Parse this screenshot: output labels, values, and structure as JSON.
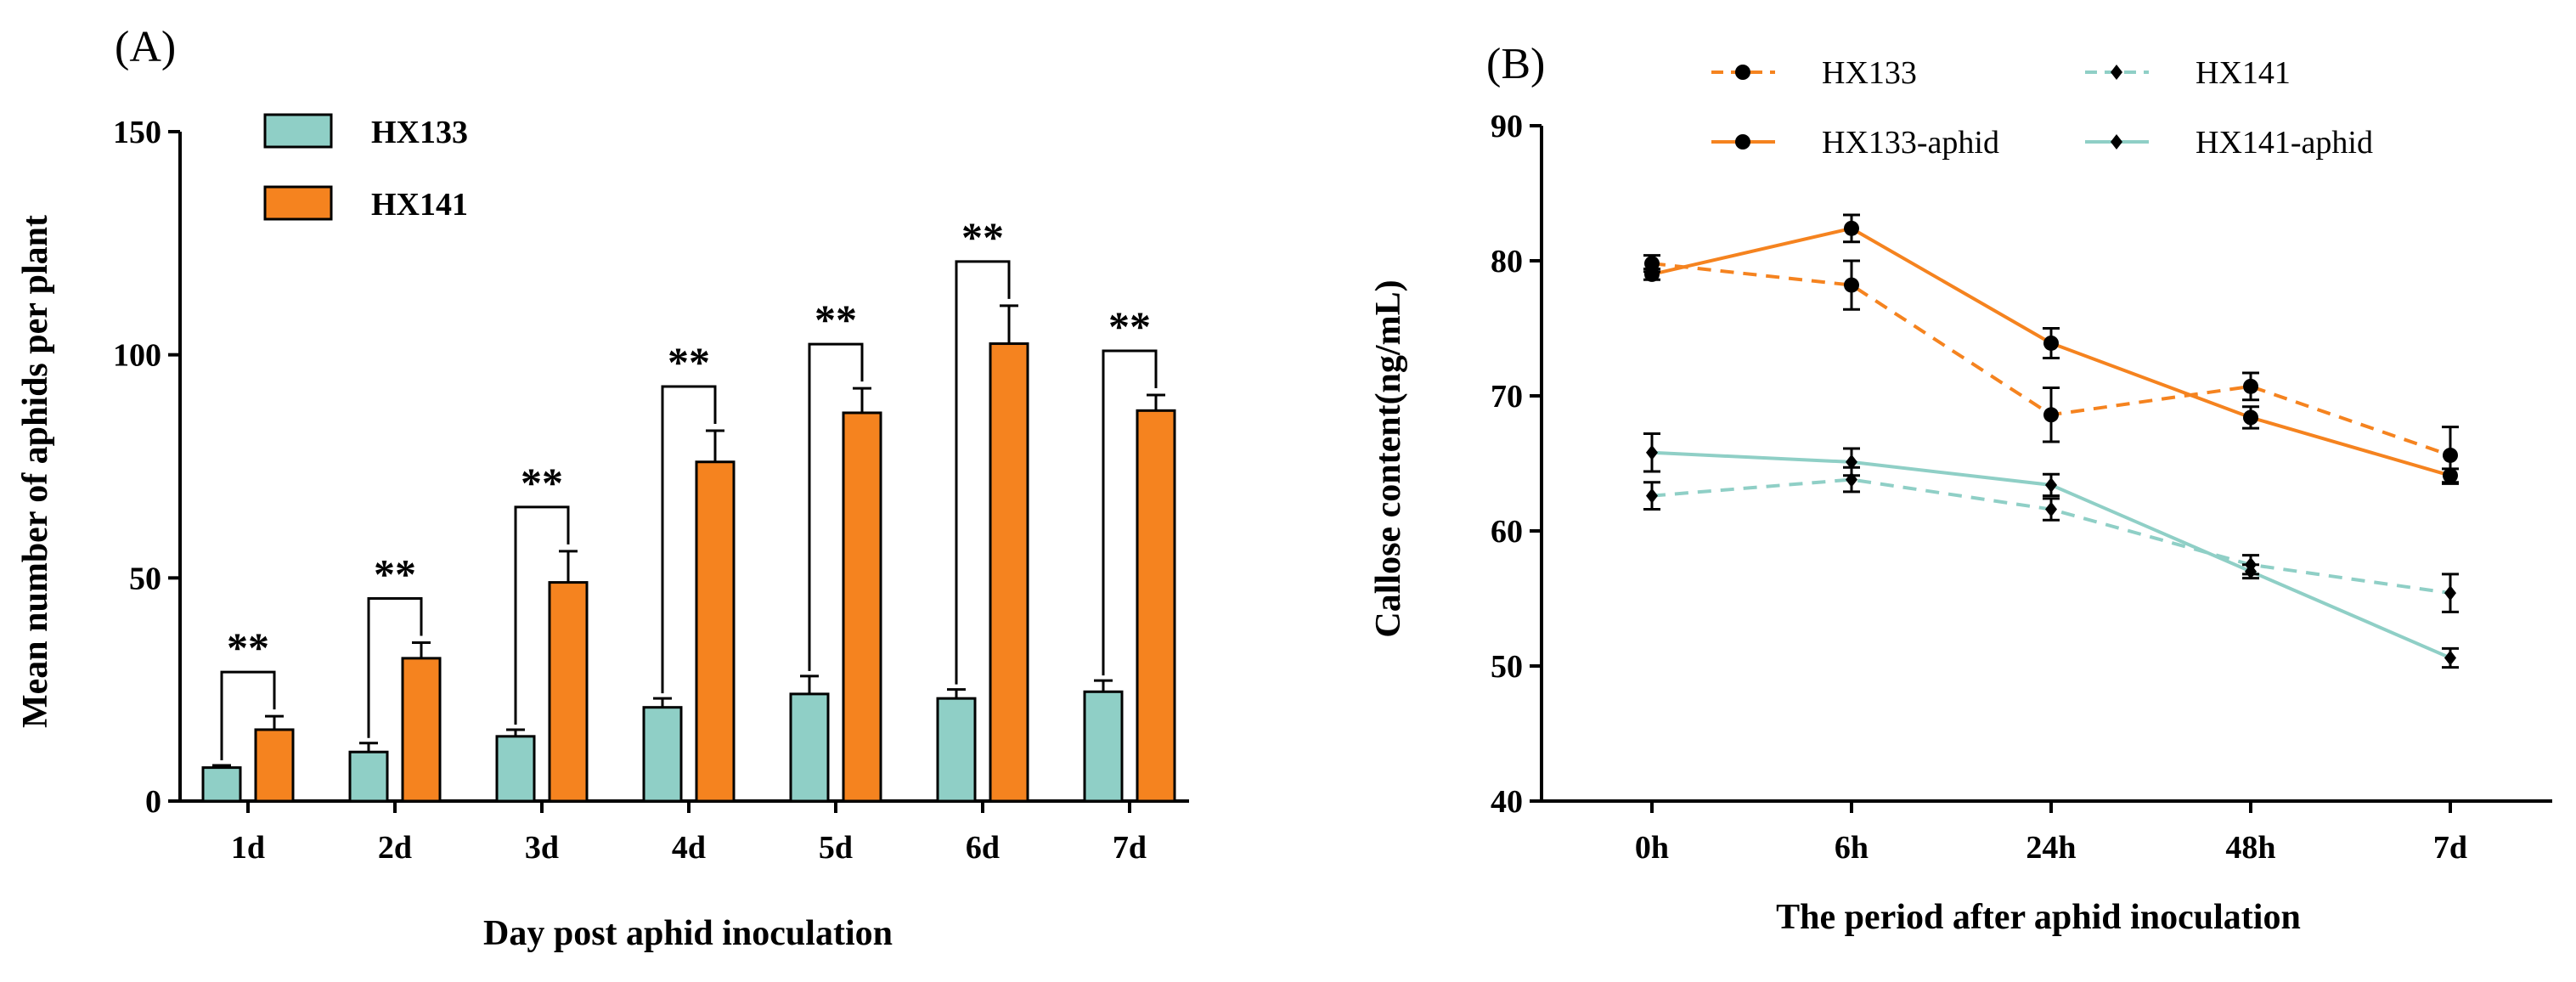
{
  "panel_a": {
    "label": "(A)"
  },
  "panel_b": {
    "label": "(B)"
  },
  "colors": {
    "hx133_bar": "#8fcfc6",
    "hx141_bar": "#f5831f",
    "orange": "#f5831f",
    "teal": "#8fcfc6",
    "marker": "#000000"
  },
  "chart_data": [
    {
      "type": "bar",
      "title": "",
      "xlabel": "Day post aphid inoculation",
      "ylabel": "Mean number of aphids per plant",
      "ylim": [
        0,
        150
      ],
      "yticks": [
        0,
        50,
        100,
        150
      ],
      "categories": [
        "1d",
        "2d",
        "3d",
        "4d",
        "5d",
        "6d",
        "7d"
      ],
      "legend_position": "top-left",
      "series": [
        {
          "name": "HX133",
          "values": [
            7.5,
            11,
            14.5,
            21,
            24,
            23,
            24.5
          ],
          "errors": [
            0.5,
            2,
            1.5,
            2,
            4,
            2,
            2.5
          ]
        },
        {
          "name": "HX141",
          "values": [
            16,
            32,
            49,
            76,
            87,
            102.5,
            87.5
          ],
          "errors": [
            3,
            3.5,
            7,
            7,
            5.5,
            8.5,
            3.5
          ]
        }
      ],
      "significance": [
        "**",
        "**",
        "**",
        "**",
        "**",
        "**",
        "**"
      ]
    },
    {
      "type": "line",
      "title": "",
      "xlabel": "The period after aphid inoculation",
      "ylabel": "Callose content(ng/mL)",
      "ylim": [
        40,
        90
      ],
      "yticks": [
        40,
        50,
        60,
        70,
        80,
        90
      ],
      "categories": [
        "0h",
        "6h",
        "24h",
        "48h",
        "7d"
      ],
      "legend_position": "top",
      "series": [
        {
          "name": "HX133",
          "style": "dashed",
          "color": "#f5831f",
          "marker": "circle",
          "values": [
            79.8,
            78.2,
            68.6,
            70.7,
            65.6
          ],
          "errors": [
            0.6,
            1.8,
            2.0,
            1.0,
            2.1
          ]
        },
        {
          "name": "HX141",
          "style": "dashed",
          "color": "#8fcfc6",
          "marker": "diamond",
          "values": [
            62.6,
            63.8,
            61.6,
            57.5,
            55.4
          ],
          "errors": [
            1.0,
            0.9,
            0.8,
            0.7,
            1.4
          ]
        },
        {
          "name": "HX133-aphid",
          "style": "solid",
          "color": "#f5831f",
          "marker": "circle",
          "values": [
            79.0,
            82.4,
            73.9,
            68.4,
            64.1
          ],
          "errors": [
            0.4,
            1.0,
            1.1,
            0.8,
            0.5
          ]
        },
        {
          "name": "HX141-aphid",
          "style": "solid",
          "color": "#8fcfc6",
          "marker": "diamond",
          "values": [
            65.8,
            65.1,
            63.4,
            57.0,
            50.6
          ],
          "errors": [
            1.4,
            1.0,
            0.8,
            0.5,
            0.7
          ]
        }
      ]
    }
  ]
}
